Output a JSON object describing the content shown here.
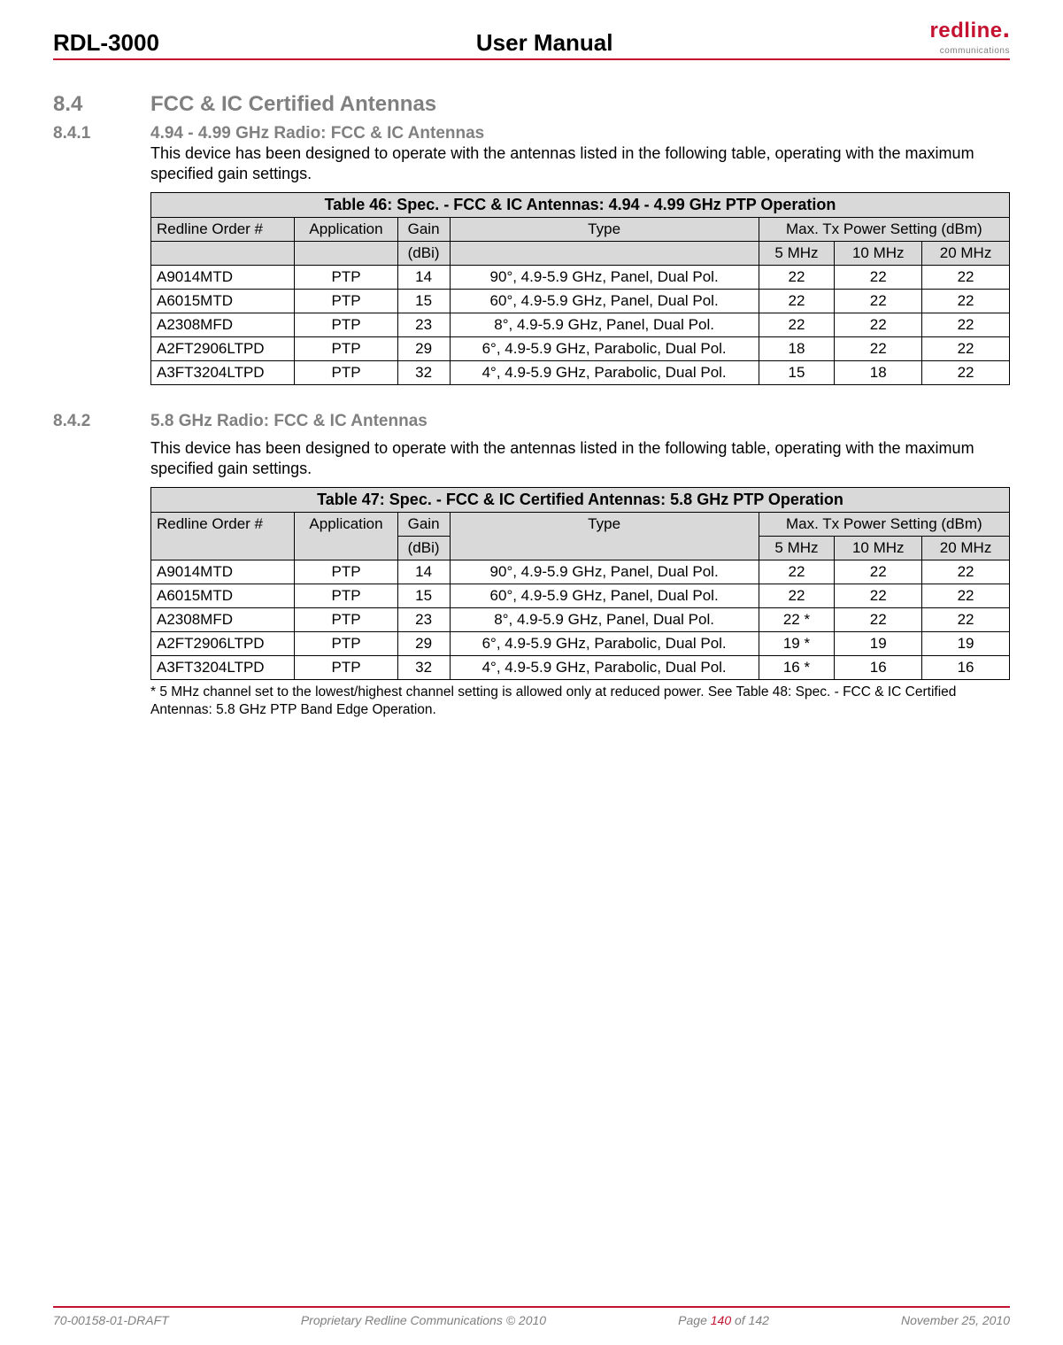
{
  "header": {
    "left": "RDL-3000",
    "center": "User Manual",
    "logo_main": "redline",
    "logo_sub": "communications"
  },
  "section": {
    "num": "8.4",
    "title": "FCC & IC Certified Antennas"
  },
  "sub1": {
    "num": "8.4.1",
    "title": "4.94 - 4.99 GHz Radio: FCC & IC Antennas",
    "intro": "This device has been designed to operate with the antennas listed in the following table, operating with the maximum specified gain settings."
  },
  "table46": {
    "caption": "Table 46: Spec. - FCC & IC Antennas: 4.94 - 4.99 GHz PTP Operation",
    "headers": {
      "order": "Redline Order #",
      "app": "Application",
      "gain": "Gain",
      "gain_unit": "(dBi)",
      "type": "Type",
      "max": "Max. Tx Power Setting (dBm)",
      "c5": "5 MHz",
      "c10": "10 MHz",
      "c20": "20 MHz"
    },
    "rows": [
      {
        "order": "A9014MTD",
        "app": "PTP",
        "gain": "14",
        "type": "90°, 4.9-5.9 GHz, Panel, Dual Pol.",
        "p5": "22",
        "p10": "22",
        "p20": "22"
      },
      {
        "order": "A6015MTD",
        "app": "PTP",
        "gain": "15",
        "type": "60°, 4.9-5.9 GHz, Panel, Dual Pol.",
        "p5": "22",
        "p10": "22",
        "p20": "22"
      },
      {
        "order": "A2308MFD",
        "app": "PTP",
        "gain": "23",
        "type": "8°, 4.9-5.9 GHz, Panel, Dual Pol.",
        "p5": "22",
        "p10": "22",
        "p20": "22"
      },
      {
        "order": "A2FT2906LTPD",
        "app": "PTP",
        "gain": "29",
        "type": "6°, 4.9-5.9 GHz, Parabolic, Dual Pol.",
        "p5": "18",
        "p10": "22",
        "p20": "22"
      },
      {
        "order": "A3FT3204LTPD",
        "app": "PTP",
        "gain": "32",
        "type": "4°, 4.9-5.9 GHz, Parabolic, Dual Pol.",
        "p5": "15",
        "p10": "18",
        "p20": "22"
      }
    ]
  },
  "sub2": {
    "num": "8.4.2",
    "title": "5.8 GHz Radio: FCC & IC Antennas",
    "intro": "This device has been designed to operate with the antennas listed in the following table, operating with the maximum specified gain settings."
  },
  "table47": {
    "caption": "Table 47: Spec. - FCC & IC Certified Antennas: 5.8 GHz PTP Operation",
    "headers": {
      "order": "Redline Order #",
      "app": "Application",
      "gain": "Gain",
      "gain_unit": "(dBi)",
      "type": "Type",
      "max": "Max. Tx Power Setting (dBm)",
      "c5": "5 MHz",
      "c10": "10 MHz",
      "c20": "20 MHz"
    },
    "rows": [
      {
        "order": "A9014MTD",
        "app": "PTP",
        "gain": "14",
        "type": "90°, 4.9-5.9 GHz, Panel, Dual Pol.",
        "p5": "22",
        "p10": "22",
        "p20": "22"
      },
      {
        "order": "A6015MTD",
        "app": "PTP",
        "gain": "15",
        "type": "60°, 4.9-5.9 GHz, Panel, Dual Pol.",
        "p5": "22",
        "p10": "22",
        "p20": "22"
      },
      {
        "order": "A2308MFD",
        "app": "PTP",
        "gain": "23",
        "type": "8°, 4.9-5.9 GHz, Panel, Dual Pol.",
        "p5": "22 *",
        "p10": "22",
        "p20": "22"
      },
      {
        "order": "A2FT2906LTPD",
        "app": "PTP",
        "gain": "29",
        "type": "6°, 4.9-5.9 GHz, Parabolic, Dual Pol.",
        "p5": "19 *",
        "p10": "19",
        "p20": "19"
      },
      {
        "order": "A3FT3204LTPD",
        "app": "PTP",
        "gain": "32",
        "type": "4°, 4.9-5.9 GHz, Parabolic, Dual Pol.",
        "p5": "16 *",
        "p10": "16",
        "p20": "16"
      }
    ]
  },
  "footnote": "* 5 MHz channel set to the lowest/highest channel setting is allowed only at reduced power. See Table 48: Spec. - FCC & IC Certified Antennas: 5.8 GHz PTP Band Edge Operation.",
  "footer": {
    "docnum": "70-00158-01-DRAFT",
    "center": "Proprietary Redline Communications © 2010",
    "page_pre": "Page ",
    "page_num": "140",
    "page_post": " of 142",
    "date": "November 25, 2010"
  },
  "colors": {
    "red": "#c41230",
    "gray": "#808080",
    "header_bg": "#d9d9d9"
  }
}
